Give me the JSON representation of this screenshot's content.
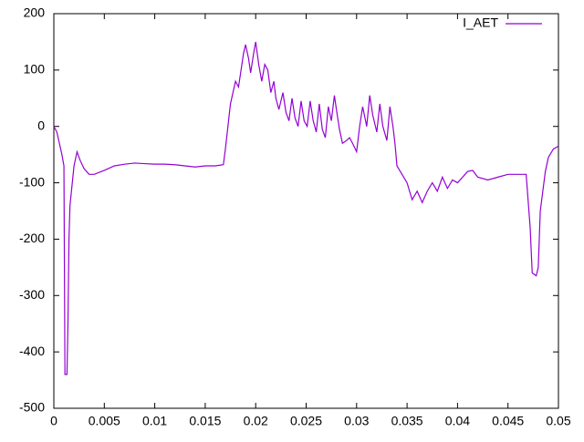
{
  "chart_data": {
    "type": "line",
    "x": [
      0,
      0.0003,
      0.0008,
      0.001,
      0.0011,
      0.0013,
      0.0014,
      0.0015,
      0.0016,
      0.002,
      0.0023,
      0.0026,
      0.003,
      0.0035,
      0.004,
      0.005,
      0.006,
      0.007,
      0.008,
      0.009,
      0.01,
      0.011,
      0.012,
      0.013,
      0.014,
      0.015,
      0.016,
      0.0168,
      0.017,
      0.0175,
      0.018,
      0.0183,
      0.0188,
      0.019,
      0.0193,
      0.0195,
      0.0198,
      0.02,
      0.0203,
      0.0206,
      0.0209,
      0.0212,
      0.0215,
      0.0218,
      0.022,
      0.0223,
      0.0227,
      0.023,
      0.0233,
      0.0236,
      0.0239,
      0.0242,
      0.0245,
      0.0248,
      0.0251,
      0.0254,
      0.0257,
      0.026,
      0.0263,
      0.0266,
      0.0269,
      0.0272,
      0.0275,
      0.0278,
      0.028,
      0.0283,
      0.0286,
      0.029,
      0.0293,
      0.0296,
      0.03,
      0.0303,
      0.0306,
      0.031,
      0.0313,
      0.0316,
      0.032,
      0.0323,
      0.0326,
      0.033,
      0.0333,
      0.0336,
      0.0338,
      0.034,
      0.0345,
      0.035,
      0.0355,
      0.036,
      0.0365,
      0.037,
      0.0375,
      0.038,
      0.0385,
      0.039,
      0.0395,
      0.04,
      0.0405,
      0.041,
      0.0415,
      0.042,
      0.043,
      0.044,
      0.045,
      0.046,
      0.0468,
      0.0472,
      0.0474,
      0.0478,
      0.048,
      0.0482,
      0.0487,
      0.049,
      0.0495,
      0.05
    ],
    "series": [
      {
        "name": "I_AET",
        "color": "#9400d3",
        "values": [
          0,
          -10,
          -50,
          -70,
          -440,
          -440,
          -350,
          -200,
          -140,
          -70,
          -45,
          -60,
          -75,
          -85,
          -85,
          -78,
          -70,
          -67,
          -65,
          -66,
          -67,
          -67,
          -68,
          -70,
          -72,
          -70,
          -70,
          -68,
          -40,
          40,
          80,
          70,
          130,
          145,
          120,
          95,
          130,
          150,
          110,
          80,
          110,
          100,
          60,
          80,
          50,
          30,
          60,
          25,
          10,
          50,
          15,
          0,
          45,
          10,
          0,
          45,
          10,
          -10,
          40,
          -5,
          -20,
          35,
          10,
          55,
          30,
          -5,
          -30,
          -25,
          -20,
          -30,
          -45,
          0,
          35,
          0,
          55,
          20,
          -10,
          40,
          0,
          -25,
          35,
          0,
          -30,
          -70,
          -85,
          -100,
          -130,
          -115,
          -135,
          -115,
          -100,
          -115,
          -90,
          -110,
          -95,
          -100,
          -90,
          -80,
          -78,
          -90,
          -95,
          -90,
          -85,
          -85,
          -85,
          -180,
          -260,
          -265,
          -250,
          -150,
          -80,
          -55,
          -40,
          -35
        ]
      }
    ],
    "xlim": [
      0,
      0.05
    ],
    "xticks": [
      0,
      0.005,
      0.01,
      0.015,
      0.02,
      0.025,
      0.03,
      0.035,
      0.04,
      0.045,
      0.05
    ],
    "ylim": [
      -500,
      200
    ],
    "yticks": [
      -500,
      -400,
      -300,
      -200,
      -100,
      0,
      100,
      200
    ],
    "legend": "top right"
  }
}
